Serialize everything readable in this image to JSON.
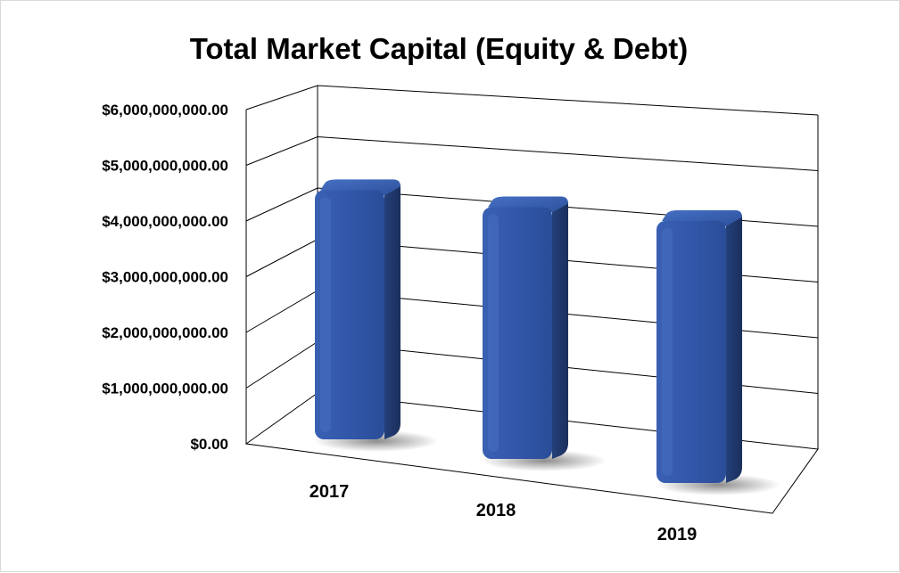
{
  "chart_data": {
    "type": "bar",
    "title": "Total Market Capital (Equity & Debt)",
    "categories": [
      "2017",
      "2018",
      "2019"
    ],
    "values": [
      4800000000,
      4850000000,
      5050000000
    ],
    "ylim": [
      0,
      6000000000
    ],
    "yticks": [
      0,
      1000000000,
      2000000000,
      3000000000,
      4000000000,
      5000000000,
      6000000000
    ],
    "ytick_labels": [
      "$0.00",
      "$1,000,000,000.00",
      "$2,000,000,000.00",
      "$3,000,000,000.00",
      "$4,000,000,000.00",
      "$5,000,000,000.00",
      "$6,000,000,000.00"
    ],
    "grid": true,
    "legend": "none",
    "style": "3d-column",
    "colors": {
      "bar_front": "#2f55a6",
      "bar_side": "#1d3463",
      "bar_top": "#3a62b8",
      "gridline": "#000000"
    }
  }
}
